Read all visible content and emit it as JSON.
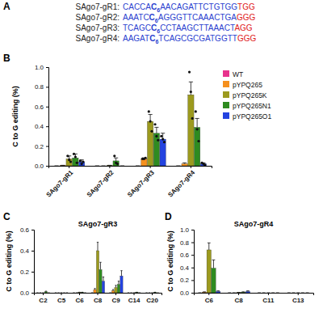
{
  "panel_labels": [
    "A",
    "B",
    "C",
    "D"
  ],
  "sequences": [
    {
      "label": "SAgo7-gR1:",
      "left": "CACCA",
      "target": "C",
      "position": "6",
      "right": "AACAGATTCTGTGG",
      "pam": "TGG"
    },
    {
      "label": "SAgo7-gR2:",
      "left": "AAATC",
      "target": "C",
      "position": "6",
      "right": "AGGGTTCAAACTGA",
      "pam": "GGG"
    },
    {
      "label": "SAgo7-gR3:",
      "left": "TCAGC",
      "target": "C",
      "position": "6",
      "right": "CCTAAGCTTAAACT",
      "pam": "AGG"
    },
    {
      "label": "SAgo7-gR4:",
      "left": "AAGAT",
      "target": "C",
      "position": "6",
      "right": "TCAGCGCGATGGTT",
      "pam": "GGG"
    }
  ],
  "chart_data": [
    {
      "type": "bar",
      "y_label": "C to G editing (%)",
      "categories": [
        "SAgo7-gR1",
        "SAgo7-gR2",
        "SAgo7-gR3",
        "SAgo7-gR4"
      ],
      "ylim": [
        0,
        1.0
      ],
      "yticks": [
        {
          "value": 0,
          "label": "0.0"
        },
        0.2,
        0.4,
        0.6,
        0.8,
        {
          "value": 1,
          "label": "1.0"
        }
      ],
      "legend": "right",
      "series": [
        {
          "name": "WT",
          "color": "#e8338d",
          "values": [
            0,
            0,
            0,
            0
          ],
          "errors": [
            0,
            0,
            0,
            0
          ],
          "points": [
            [],
            [],
            [],
            []
          ]
        },
        {
          "name": "pYPQ265",
          "color": "#f5901e",
          "values": [
            0.005,
            0,
            0.07,
            0.02
          ],
          "errors": [
            0,
            0,
            0.01,
            0.01
          ],
          "points": [
            [],
            [],
            [
              0.07,
              0.07,
              0.08
            ],
            []
          ]
        },
        {
          "name": "pYPQ265K",
          "color": "#9c9a1e",
          "values": [
            0.07,
            0.005,
            0.45,
            0.72
          ],
          "errors": [
            0.03,
            0,
            0.07,
            0.13
          ],
          "points": [
            [
              0.1,
              0.06,
              0.04
            ],
            [],
            [
              0.55,
              0.45,
              0.35
            ],
            [
              0.95,
              0.75,
              0.48
            ]
          ]
        },
        {
          "name": "pYPQ265N1",
          "color": "#2e8b20",
          "values": [
            0.08,
            0.05,
            0.33,
            0.39
          ],
          "errors": [
            0.04,
            0.03,
            0.06,
            0.09
          ],
          "points": [
            [
              0.12,
              0.09,
              0.03
            ],
            [
              0.1,
              0.03,
              0.02
            ],
            [
              0.42,
              0.3,
              0.26
            ],
            [
              0.55,
              0.37,
              0.25
            ]
          ]
        },
        {
          "name": "pYPQ265O1",
          "color": "#2343e0",
          "values": [
            0.04,
            0,
            0.27,
            0.02
          ],
          "errors": [
            0.02,
            0,
            0.06,
            0.01
          ],
          "points": [
            [
              0.05,
              0.02,
              0.04
            ],
            [],
            [
              0.3,
              0.27,
              0.24
            ],
            [
              0.03,
              0.02,
              0.01
            ]
          ]
        }
      ]
    },
    {
      "type": "bar",
      "title": "SAgo7-gR3",
      "y_label": "C to G editing (%)",
      "categories": [
        "C2",
        "C5",
        "C6",
        "C8",
        "C9",
        "C14",
        "C20"
      ],
      "ylim": [
        0,
        0.6
      ],
      "yticks": [
        {
          "value": 0,
          "label": "0.0"
        },
        0.2,
        0.4,
        0.6
      ],
      "series": [
        {
          "name": "WT",
          "color": "#e8338d",
          "values": [
            0,
            0,
            0,
            0,
            0,
            0,
            0
          ],
          "errors": [
            0,
            0,
            0,
            0,
            0,
            0,
            0
          ]
        },
        {
          "name": "pYPQ265",
          "color": "#f5901e",
          "values": [
            0,
            0,
            0,
            0.03,
            0.02,
            0,
            0
          ],
          "errors": [
            0,
            0,
            0,
            0.01,
            0.01,
            0,
            0
          ]
        },
        {
          "name": "pYPQ265K",
          "color": "#9c9a1e",
          "values": [
            0,
            0,
            0.005,
            0.4,
            0.05,
            0,
            0
          ],
          "errors": [
            0,
            0,
            0,
            0.08,
            0.02,
            0,
            0
          ]
        },
        {
          "name": "pYPQ265N1",
          "color": "#2e8b20",
          "values": [
            0.01,
            0,
            0.005,
            0.22,
            0.08,
            0.005,
            0.005
          ],
          "errors": [
            0.005,
            0,
            0,
            0.07,
            0.03,
            0,
            0
          ]
        },
        {
          "name": "pYPQ265O1",
          "color": "#2343e0",
          "values": [
            0,
            0,
            0,
            0.11,
            0.16,
            0,
            0
          ],
          "errors": [
            0,
            0,
            0,
            0.04,
            0.05,
            0,
            0
          ]
        }
      ]
    },
    {
      "type": "bar",
      "title": "SAgo7-gR4",
      "y_label": "C to G editing (%)",
      "categories": [
        "C6",
        "C8",
        "C11",
        "C13"
      ],
      "ylim": [
        0,
        1.0
      ],
      "yticks": [
        {
          "value": 0,
          "label": "0.0"
        },
        0.2,
        0.4,
        0.6,
        0.8,
        {
          "value": 1,
          "label": "1.0"
        }
      ],
      "series": [
        {
          "name": "WT",
          "color": "#e8338d",
          "values": [
            0,
            0,
            0,
            0
          ],
          "errors": [
            0,
            0,
            0,
            0
          ]
        },
        {
          "name": "pYPQ265",
          "color": "#f5901e",
          "values": [
            0.01,
            0,
            0,
            0
          ],
          "errors": [
            0.005,
            0,
            0,
            0
          ]
        },
        {
          "name": "pYPQ265K",
          "color": "#9c9a1e",
          "values": [
            0.68,
            0.005,
            0,
            0
          ],
          "errors": [
            0.11,
            0,
            0,
            0
          ]
        },
        {
          "name": "pYPQ265N1",
          "color": "#2e8b20",
          "values": [
            0.39,
            0.01,
            0,
            0
          ],
          "errors": [
            0.13,
            0.005,
            0,
            0
          ]
        },
        {
          "name": "pYPQ265O1",
          "color": "#2343e0",
          "values": [
            0.02,
            0.02,
            0,
            0
          ],
          "errors": [
            0.01,
            0.01,
            0,
            0
          ]
        }
      ]
    }
  ]
}
